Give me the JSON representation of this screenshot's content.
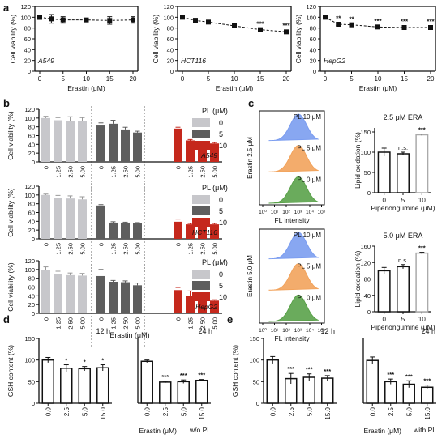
{
  "panel_labels": [
    "a",
    "b",
    "c",
    "d",
    "e"
  ],
  "colors": {
    "gray": "#c7c7cb",
    "dark": "#5e5e5e",
    "red": "#c5281c",
    "blue": "#7b9df0",
    "orange": "#f2a35c",
    "green": "#5aa24a"
  },
  "chart_data": [
    {
      "id": "a1",
      "type": "line",
      "cell": "A549",
      "ylabel": "Cell viability (%)",
      "xlabel": "Erastin (μM)",
      "x": [
        0,
        2.5,
        5,
        10,
        15,
        20
      ],
      "values": [
        100,
        97,
        95,
        95,
        94,
        95
      ],
      "errors": [
        4,
        8,
        6,
        3,
        7,
        6
      ],
      "stars": [
        "",
        "",
        "",
        "",
        "",
        ""
      ],
      "ylim": [
        0,
        120
      ],
      "yticks": [
        0,
        20,
        40,
        60,
        80,
        100,
        120
      ],
      "xticks": [
        0,
        5,
        10,
        15,
        20
      ]
    },
    {
      "id": "a2",
      "type": "line",
      "cell": "HCT116",
      "ylabel": "Cell viability (%)",
      "xlabel": "Erastin (μM)",
      "x": [
        0,
        2.5,
        5,
        10,
        15,
        20
      ],
      "values": [
        100,
        94,
        91,
        84,
        77,
        73
      ],
      "errors": [
        3,
        4,
        3,
        3,
        2,
        3
      ],
      "stars": [
        "",
        "",
        "",
        "",
        "***",
        "***"
      ],
      "ylim": [
        0,
        120
      ],
      "yticks": [
        0,
        20,
        40,
        60,
        80,
        100,
        120
      ],
      "xticks": [
        0,
        5,
        10,
        15,
        20
      ]
    },
    {
      "id": "a3",
      "type": "line",
      "cell": "HepG2",
      "ylabel": "Cell viability (%)",
      "xlabel": "Erastin (μM)",
      "x": [
        0,
        2.5,
        5,
        10,
        15,
        20
      ],
      "values": [
        100,
        87,
        86,
        82,
        81,
        81
      ],
      "errors": [
        2,
        2,
        2,
        2,
        2,
        2
      ],
      "stars": [
        "",
        "**",
        "**",
        "***",
        "***",
        "***"
      ],
      "ylim": [
        0,
        120
      ],
      "yticks": [
        0,
        20,
        40,
        60,
        80,
        100,
        120
      ],
      "xticks": [
        0,
        5,
        10,
        15,
        20
      ]
    },
    {
      "id": "b1",
      "type": "bar",
      "cell": "A549",
      "ylabel": "Cell viability (%)",
      "categories": [
        "0",
        "1.25",
        "2.50",
        "5.00"
      ],
      "legend_title": "PL (μM)",
      "legend": [
        "0",
        "5",
        "10"
      ],
      "series": [
        {
          "name": "0",
          "values": [
            100,
            95,
            94,
            93
          ],
          "errors": [
            4,
            6,
            9,
            8
          ]
        },
        {
          "name": "5",
          "values": [
            83,
            87,
            74,
            67
          ],
          "errors": [
            6,
            8,
            5,
            3
          ]
        },
        {
          "name": "10",
          "values": [
            76,
            49,
            45,
            42
          ],
          "errors": [
            3,
            2,
            2,
            2
          ]
        }
      ],
      "ylim": [
        0,
        120
      ],
      "yticks": [
        0,
        20,
        40,
        60,
        80,
        100,
        120
      ]
    },
    {
      "id": "b2",
      "type": "bar",
      "cell": "HCT116",
      "ylabel": "Cell viability (%)",
      "categories": [
        "0",
        "1.25",
        "2.50",
        "5.00"
      ],
      "legend_title": "PL (μM)",
      "legend": [
        "0",
        "5",
        "10"
      ],
      "series": [
        {
          "name": "0",
          "values": [
            100,
            94,
            92,
            90
          ],
          "errors": [
            2,
            5,
            6,
            6
          ]
        },
        {
          "name": "5",
          "values": [
            76,
            37,
            37,
            36
          ],
          "errors": [
            2,
            2,
            1,
            1
          ]
        },
        {
          "name": "10",
          "values": [
            39,
            33,
            33,
            33
          ],
          "errors": [
            6,
            2,
            2,
            2
          ]
        }
      ],
      "ylim": [
        0,
        120
      ],
      "yticks": [
        0,
        20,
        40,
        60,
        80,
        100,
        120
      ]
    },
    {
      "id": "b3",
      "type": "bar",
      "cell": "HepG2",
      "ylabel": "Cell viability (%)",
      "categories": [
        "0",
        "1.25",
        "2.50",
        "5.00"
      ],
      "legend_title": "PL (μM)",
      "legend": [
        "0",
        "5",
        "10"
      ],
      "series": [
        {
          "name": "0",
          "values": [
            98,
            90,
            87,
            86
          ],
          "errors": [
            8,
            6,
            5,
            5
          ]
        },
        {
          "name": "5",
          "values": [
            85,
            72,
            71,
            64
          ],
          "errors": [
            15,
            3,
            3,
            5
          ]
        },
        {
          "name": "10",
          "values": [
            53,
            39,
            30,
            29
          ],
          "errors": [
            6,
            12,
            2,
            2
          ]
        }
      ],
      "ylim": [
        0,
        120
      ],
      "yticks": [
        0,
        20,
        40,
        60,
        80,
        100,
        120
      ]
    },
    {
      "id": "c1",
      "type": "area",
      "ylabel": "Erastin 2.5 μM",
      "xlabel": "FL intensity",
      "series_labels": [
        "PL 10 μM",
        "PL 5 μM",
        "PL 0 μM"
      ],
      "xticks": [
        "10⁰",
        "10¹",
        "10²",
        "10³",
        "10⁴",
        "10⁵"
      ]
    },
    {
      "id": "c2",
      "type": "bar",
      "title": "2.5 μM ERA",
      "ylabel": "Lipid oxidation (%)",
      "xlabel": "Piperlongumine (μM)",
      "categories": [
        "0",
        "5",
        "10"
      ],
      "values": [
        100,
        96,
        143
      ],
      "errors": [
        10,
        4,
        2
      ],
      "stars": [
        "",
        "n.s.",
        "***"
      ],
      "ylim": [
        0,
        160
      ],
      "yticks": [
        0,
        50,
        100,
        150
      ]
    },
    {
      "id": "c3",
      "type": "area",
      "ylabel": "Erastin 5.0 μM",
      "xlabel": "FL intensity",
      "series_labels": [
        "PL 10 μM",
        "PL 5 μM",
        "PL 0 μM"
      ],
      "xticks": [
        "10⁰",
        "10¹",
        "10²",
        "10³",
        "10⁴",
        "10⁵"
      ]
    },
    {
      "id": "c4",
      "type": "bar",
      "title": "5.0 μM ERA",
      "ylabel": "Lipid oxidation (%)",
      "xlabel": "Piperlongumine (μM)",
      "categories": [
        "0",
        "5",
        "10"
      ],
      "values": [
        100,
        110,
        143
      ],
      "errors": [
        8,
        5,
        2
      ],
      "stars": [
        "",
        "n.s.",
        "***"
      ],
      "ylim": [
        0,
        160
      ],
      "yticks": [
        0,
        40,
        80,
        120,
        160
      ]
    },
    {
      "id": "d1",
      "type": "bar",
      "title": "12 h",
      "ylabel": "GSH content (%)",
      "categories": [
        "0.0",
        "2.5",
        "5.0",
        "15.0"
      ],
      "values": [
        100,
        81,
        80,
        82
      ],
      "errors": [
        6,
        8,
        5,
        7
      ],
      "stars": [
        "",
        "*",
        "*",
        "*"
      ],
      "ylim": [
        0,
        150
      ],
      "yticks": [
        0,
        50,
        100,
        150
      ]
    },
    {
      "id": "d2",
      "type": "bar",
      "title": "24 h",
      "note": "w/o PL",
      "categories": [
        "0.0",
        "2.5",
        "5.0",
        "15.0"
      ],
      "values": [
        97,
        49,
        50,
        53
      ],
      "errors": [
        3,
        2,
        4,
        2
      ],
      "stars": [
        "",
        "***",
        "***",
        "***"
      ],
      "ylim": [
        0,
        150
      ]
    },
    {
      "id": "e1",
      "type": "bar",
      "title": "12 h",
      "ylabel": "GSH content (%)",
      "categories": [
        "0.0",
        "2.5",
        "5.0",
        "15.0"
      ],
      "values": [
        100,
        57,
        60,
        58
      ],
      "errors": [
        8,
        12,
        8,
        6
      ],
      "stars": [
        "",
        "***",
        "***",
        "***"
      ],
      "ylim": [
        0,
        150
      ],
      "yticks": [
        0,
        50,
        100,
        150
      ]
    },
    {
      "id": "e2",
      "type": "bar",
      "title": "24 h",
      "note": "with PL",
      "categories": [
        "0.0",
        "2.5",
        "5.0",
        "15.0"
      ],
      "values": [
        99,
        50,
        44,
        37
      ],
      "errors": [
        8,
        6,
        8,
        5
      ],
      "stars": [
        "",
        "***",
        "***",
        "***"
      ],
      "ylim": [
        0,
        150
      ]
    }
  ],
  "shared_labels": {
    "erastin_b": "Erastin (μM)",
    "erastin_de": "Erastin (μM)"
  }
}
